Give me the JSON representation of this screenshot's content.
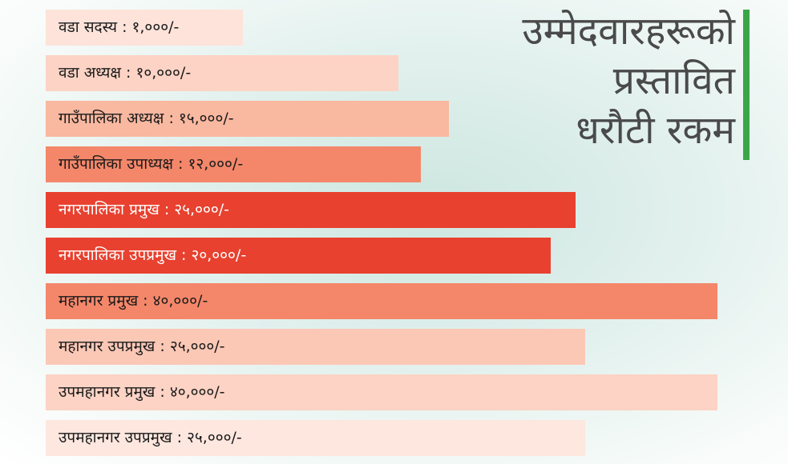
{
  "title": {
    "lines": [
      "उम्मेदवारहरूको",
      "प्रस्तावित",
      "धरौटी रकम"
    ]
  },
  "items": [
    {
      "text": "वडा सदस्य : १,०००/-"
    },
    {
      "text": "वडा अध्यक्ष : १०,०००/-"
    },
    {
      "text": "गाउँपालिका अध्यक्ष : १५,०००/-"
    },
    {
      "text": "गाउँपालिका उपाध्यक्ष : १२,०००/-"
    },
    {
      "text": "नगरपालिका प्रमुख : २५,०००/-"
    },
    {
      "text": "नगरपालिका उपप्रमुख : २०,०००/-"
    },
    {
      "text": "महानगर प्रमुख : ४०,०००/-"
    },
    {
      "text": "महानगर उपप्रमुख : २५,०००/-"
    },
    {
      "text": "उपमहानगर प्रमुख : ४०,०००/-"
    },
    {
      "text": "उपमहानगर उपप्रमुख : २५,०००/-"
    }
  ]
}
